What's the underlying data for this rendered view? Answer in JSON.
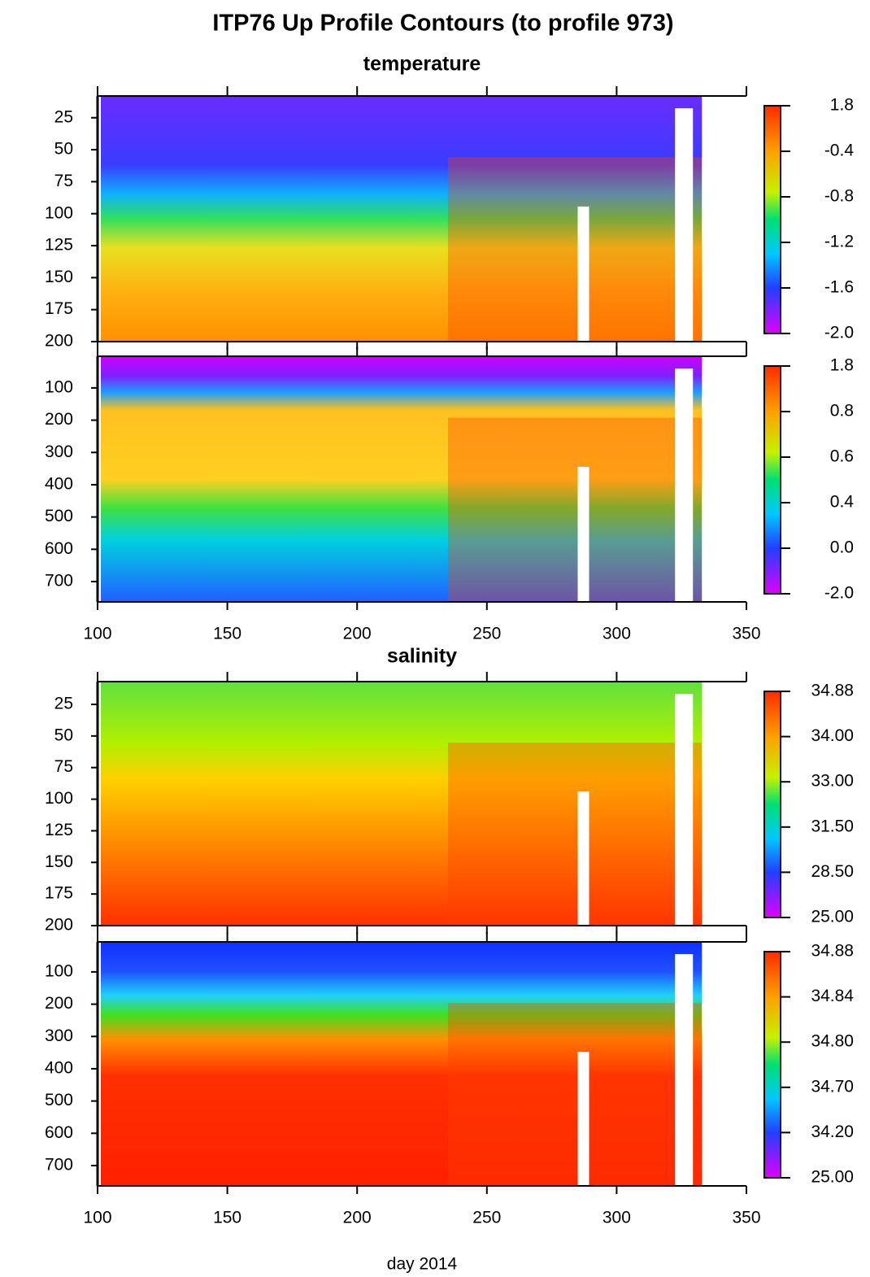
{
  "chart_data": [
    {
      "type": "contour",
      "title": "ITP76 Up Profile Contours (to profile 973)",
      "subtitle": "temperature",
      "xlim": [
        100,
        350
      ],
      "xticks": [
        100,
        150,
        200,
        250,
        300,
        350
      ],
      "xtick_labels": false,
      "ylim": [
        200,
        8
      ],
      "yticks": [
        25,
        50,
        75,
        100,
        125,
        150,
        175,
        200
      ],
      "colorbar": [
        "1.8",
        "-0.4",
        "-0.8",
        "-1.2",
        "-1.6",
        "-2.0"
      ]
    },
    {
      "type": "contour",
      "xlim": [
        100,
        350
      ],
      "xticks": [
        100,
        150,
        200,
        250,
        300,
        350
      ],
      "xtick_labels": true,
      "ylim": [
        763,
        2
      ],
      "yticks": [
        100,
        200,
        300,
        400,
        500,
        600,
        700
      ],
      "colorbar": [
        "1.8",
        "0.8",
        "0.6",
        "0.4",
        "0.0",
        "-2.0"
      ]
    },
    {
      "type": "contour",
      "subtitle": "salinity",
      "xlim": [
        100,
        350
      ],
      "xticks": [
        100,
        150,
        200,
        250,
        300,
        350
      ],
      "xtick_labels": false,
      "ylim": [
        200,
        7
      ],
      "yticks": [
        25,
        50,
        75,
        100,
        125,
        150,
        175,
        200
      ],
      "colorbar": [
        "34.88",
        "34.00",
        "33.00",
        "31.50",
        "28.50",
        "25.00"
      ]
    },
    {
      "type": "contour",
      "xlabel": "day 2014",
      "xlim": [
        100,
        350
      ],
      "xticks": [
        100,
        150,
        200,
        250,
        300,
        350
      ],
      "xtick_labels": true,
      "ylim": [
        763,
        7
      ],
      "yticks": [
        100,
        200,
        300,
        400,
        500,
        600,
        700
      ],
      "colorbar": [
        "34.88",
        "34.84",
        "34.80",
        "34.70",
        "34.20",
        "25.00"
      ]
    }
  ]
}
